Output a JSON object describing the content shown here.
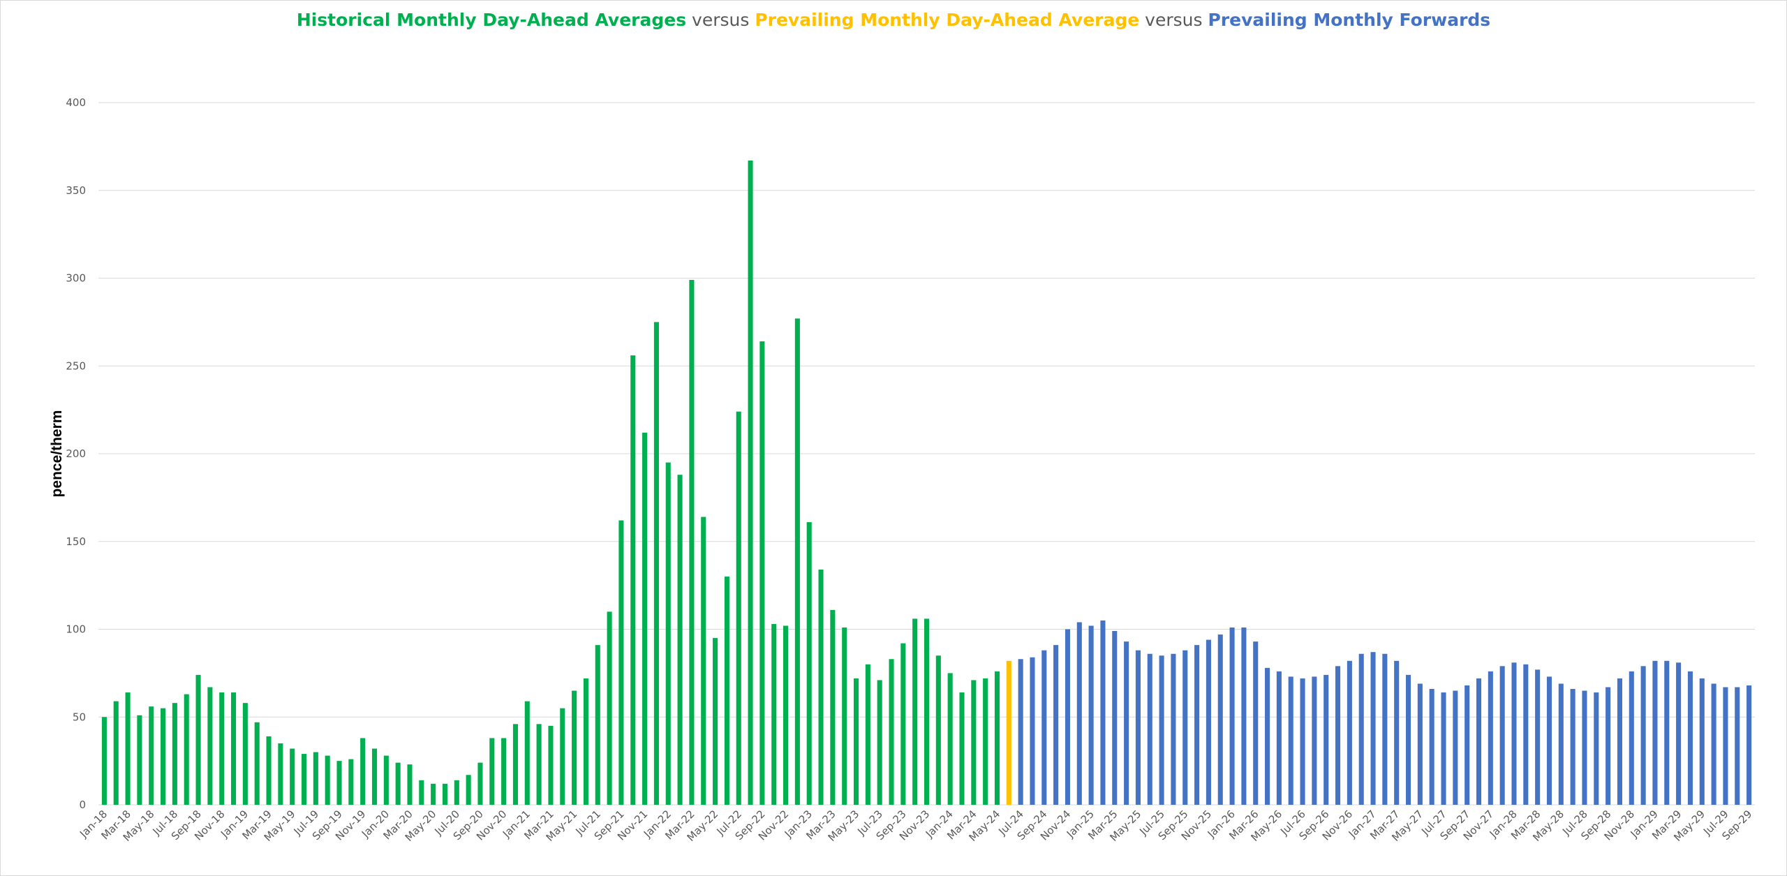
{
  "chart_data": {
    "type": "bar",
    "title_parts": [
      {
        "text": "Historical Monthly Day-Ahead Averages",
        "style": "green"
      },
      {
        "text": " versus ",
        "style": "vs"
      },
      {
        "text": "Prevailing Monthly Day-Ahead Average",
        "style": "gold"
      },
      {
        "text": " versus ",
        "style": "vs"
      },
      {
        "text": "Prevailing Monthly Forwards",
        "style": "blue"
      }
    ],
    "ylabel": "pence/therm",
    "ylim": [
      0,
      400
    ],
    "yticks": [
      0,
      50,
      100,
      150,
      200,
      250,
      300,
      350,
      400
    ],
    "grid": true,
    "colors": {
      "historical": "#00b050",
      "prevailing": "#ffc000",
      "forwards": "#4472c4"
    },
    "start_month": "Jan-18",
    "x_label_every": 2,
    "series": [
      {
        "key": "historical",
        "values": [
          50,
          59,
          64,
          51,
          56,
          55,
          58,
          63,
          74,
          67,
          64,
          64,
          58,
          47,
          39,
          35,
          32,
          29,
          30,
          28,
          25,
          26,
          38,
          32,
          28,
          24,
          23,
          14,
          12,
          12,
          14,
          17,
          24,
          38,
          38,
          46,
          59,
          46,
          45,
          55,
          65,
          72,
          91,
          110,
          162,
          256,
          212,
          275,
          195,
          188,
          299,
          164,
          95,
          130,
          224,
          367,
          264,
          103,
          102,
          277,
          161,
          134,
          111,
          101,
          72,
          80,
          71,
          83,
          92,
          106,
          106,
          85,
          75,
          64,
          71,
          72,
          76
        ]
      },
      {
        "key": "prevailing",
        "values": [
          82
        ]
      },
      {
        "key": "forwards",
        "values": [
          83,
          84,
          88,
          91,
          100,
          104,
          102,
          105,
          99,
          93,
          88,
          86,
          85,
          86,
          88,
          91,
          94,
          97,
          101,
          101,
          93,
          78,
          76,
          73,
          72,
          73,
          74,
          79,
          82,
          86,
          87,
          86,
          82,
          74,
          69,
          66,
          64,
          65,
          68,
          72,
          76,
          79,
          81,
          80,
          77,
          73,
          69,
          66,
          65,
          64,
          67,
          72,
          76,
          79,
          82,
          82,
          81,
          76,
          72,
          69,
          67,
          67,
          68
        ]
      }
    ]
  }
}
